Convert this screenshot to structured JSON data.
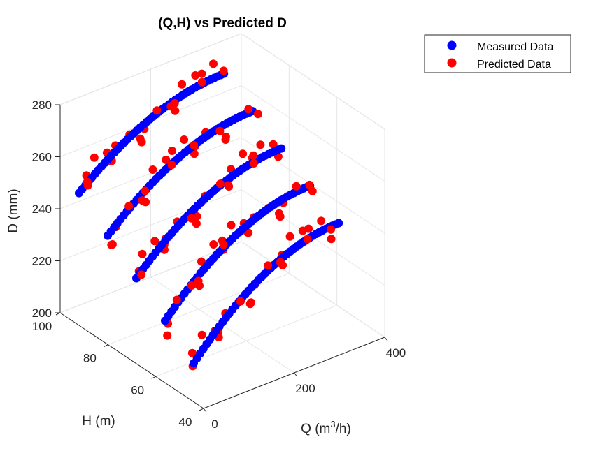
{
  "chart_data": {
    "type": "scatter",
    "projection": "3d",
    "title": "(Q,H) vs Predicted D",
    "xlabel_main": "Q (m",
    "xlabel_sup": "3",
    "xlabel_tail": "/h)",
    "ylabel": "H (m)",
    "zlabel": "D (mm)",
    "xlim": [
      0,
      400
    ],
    "ylim": [
      40,
      100
    ],
    "zlim": [
      200,
      280
    ],
    "x_ticks": [
      "0",
      "200",
      "400"
    ],
    "y_ticks": [
      "40",
      "60",
      "80",
      "100"
    ],
    "z_ticks": [
      "200",
      "220",
      "240",
      "260",
      "280"
    ],
    "legend_position": "top-right",
    "grid": true,
    "curves": [
      {
        "H": 46,
        "D_base": 213,
        "D_amp": 32,
        "q_peak": 330
      },
      {
        "H": 58,
        "D_base": 222,
        "D_amp": 30,
        "q_peak": 330
      },
      {
        "H": 70,
        "D_base": 231,
        "D_amp": 28,
        "q_peak": 330
      },
      {
        "H": 82,
        "D_base": 240,
        "D_amp": 26,
        "q_peak": 330
      },
      {
        "H": 94,
        "D_base": 249,
        "D_amp": 24,
        "q_peak": 330
      }
    ],
    "q_range": [
      10,
      330
    ],
    "points_per_curve": 46,
    "series": [
      {
        "name": "Measured Data",
        "color": "#0000ff"
      },
      {
        "name": "Predicted Data",
        "color": "#ff0000"
      }
    ]
  }
}
